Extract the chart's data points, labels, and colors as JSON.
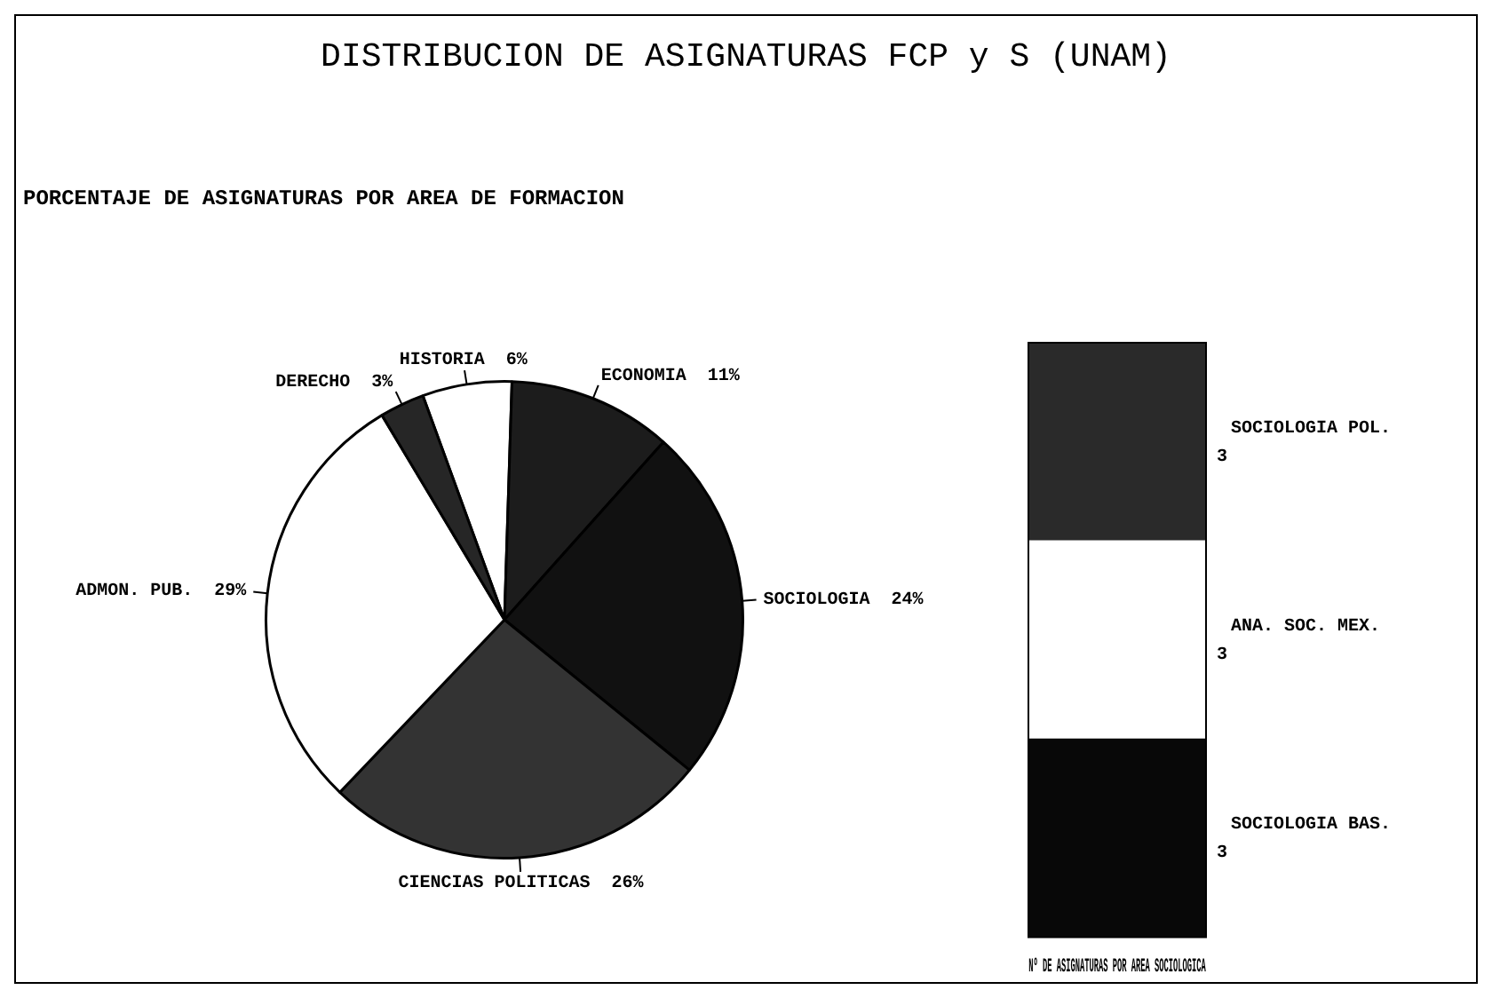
{
  "chart_data": [
    {
      "type": "pie",
      "title": "DISTRIBUCION DE ASIGNATURAS FCP y S (UNAM)",
      "subtitle": "PORCENTAJE DE ASIGNATURAS POR AREA DE FORMACION",
      "categories": [
        "HISTORIA",
        "ECONOMIA",
        "SOCIOLOGIA",
        "CIENCIAS POLITICAS",
        "ADMON. PUB.",
        "DERECHO"
      ],
      "values": [
        6,
        11,
        24,
        26,
        29,
        3
      ],
      "value_labels": [
        "6%",
        "11%",
        "24%",
        "26%",
        "29%",
        "3%"
      ],
      "colors": [
        "#ffffff",
        "#1c1c1c",
        "#111111",
        "#333333",
        "#ffffff",
        "#262626"
      ],
      "legend": false
    },
    {
      "type": "bar",
      "stacked": true,
      "title": "Nº DE ASIGNATURAS POR AREA SOCIOLOGICA",
      "categories": [
        null
      ],
      "series": [
        {
          "name": "SOCIOLOGIA BAS.",
          "color": "#080808",
          "values": [
            3
          ],
          "value_labels": [
            "3"
          ]
        },
        {
          "name": "ANA. SOC. MEX.",
          "color": "#ffffff",
          "values": [
            3
          ],
          "value_labels": [
            "3"
          ]
        },
        {
          "name": "SOCIOLOGIA POL.",
          "color": "#2a2a2a",
          "values": [
            3
          ],
          "value_labels": [
            "3"
          ]
        }
      ],
      "legend": "right"
    }
  ]
}
